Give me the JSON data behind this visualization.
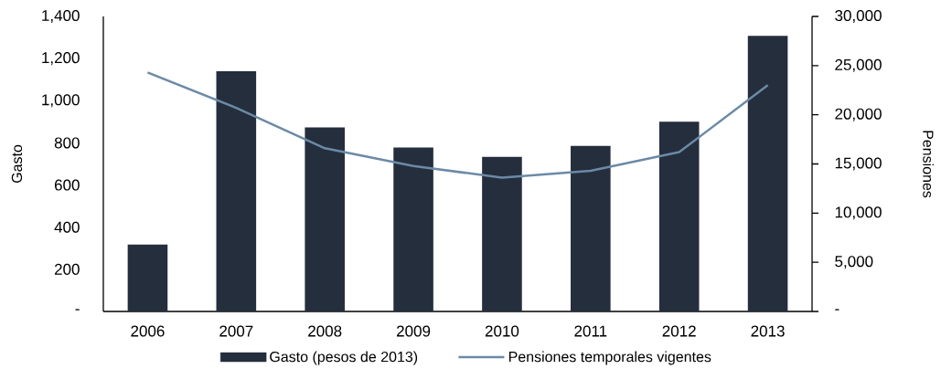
{
  "chart_data": {
    "type": "bar",
    "categories": [
      "2006",
      "2007",
      "2008",
      "2009",
      "2010",
      "2011",
      "2012",
      "2013"
    ],
    "ylabel": "Gasto",
    "y2label": "Pensiones",
    "series": [
      {
        "name": "Gasto (pesos de 2013)",
        "color": "#252e3d",
        "values": [
          318,
          1140,
          873,
          778,
          734,
          786,
          900,
          1308
        ]
      },
      {
        "name": "Pensiones temporales vigentes",
        "type": "line",
        "axis": "y2",
        "color": "#6b8aa6",
        "values": [
          24300,
          20700,
          16600,
          14800,
          13600,
          14300,
          16200,
          23000
        ]
      }
    ],
    "ylim": [
      0,
      1400
    ],
    "yticks": [
      {
        "value": 0,
        "label": "-"
      },
      200,
      400,
      600,
      800,
      {
        "value": 1000,
        "label": "1,000"
      },
      {
        "value": 1200,
        "label": "1,200"
      },
      {
        "value": 1400,
        "label": "1,400"
      }
    ],
    "y2lim": [
      0,
      30000
    ],
    "y2ticks": [
      {
        "value": 0,
        "label": "-"
      },
      {
        "value": 5000,
        "label": "5,000"
      },
      {
        "value": 10000,
        "label": "10,000"
      },
      {
        "value": 15000,
        "label": "15,000"
      },
      {
        "value": 20000,
        "label": "20,000"
      },
      {
        "value": 25000,
        "label": "25,000"
      },
      {
        "value": 30000,
        "label": "30,000"
      }
    ],
    "legend": "bottom"
  }
}
